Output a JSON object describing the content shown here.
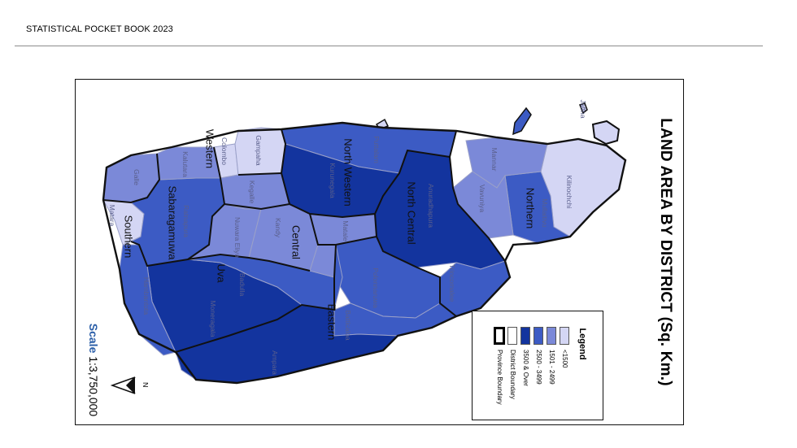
{
  "header": {
    "title": "STATISTICAL POCKET BOOK 2023"
  },
  "map": {
    "title": "LAND AREA BY DISTRICT (Sq. Km.)",
    "scale_word": "Scale",
    "scale_value": "1:3,750,000",
    "north_label": "N",
    "colors": {
      "lt1500": "#d4d6f4",
      "r1501_2499": "#7b89d8",
      "r2500_3499": "#3c5bc4",
      "gt3500": "#13349e",
      "ocean": "#ffffff",
      "district_boundary": "#9aa0c8",
      "province_boundary": "#000000"
    }
  },
  "legend": {
    "title": "Legend",
    "items": [
      {
        "label": "<1500",
        "color": "#d4d6f4"
      },
      {
        "label": "1501 - 2499",
        "color": "#7b89d8"
      },
      {
        "label": "2500 - 3499",
        "color": "#3c5bc4"
      },
      {
        "label": "3500 & Over",
        "color": "#13349e"
      },
      {
        "label": "District Boundary",
        "color": "#ffffff"
      },
      {
        "label": "Province Boundary",
        "color": "#ffffff"
      }
    ]
  },
  "provinces": {
    "northern": "Northern",
    "north_central": "North Central",
    "north_western": "North Western",
    "western": "Western",
    "central": "Central",
    "sabaragamuwa": "Sabaragamuwa",
    "southern": "Southern",
    "uva": "Uva",
    "eastern": "Eastern"
  },
  "districts": {
    "jaffna": "Jaffna",
    "kilinochchi": "Kilinochchi",
    "mannar": "Mannar",
    "mullaitivu": "Mullaitivu",
    "vavuniya": "Vavuniya",
    "puttalam": "Puttalam",
    "kurunegala": "Kurunegala",
    "anuradhapura": "Anuradhapura",
    "polonnaruwa": "Polonnaruwa",
    "gampaha": "Gampaha",
    "colombo": "Colombo",
    "kalutara": "Kalutara",
    "kandy": "Kandy",
    "matale": "Matale",
    "nuwara_eliya": "Nuwara Eliya",
    "kegalle": "Kegalle",
    "ratnapura": "Ratnapura",
    "galle": "Galle",
    "matara": "Matara",
    "hambantota": "Hambantota",
    "badulla": "Badulla",
    "moneragala": "Moneragala",
    "trincomalee": "Trincomalee",
    "batticaloa": "Batticaloa",
    "ampara": "Ampara"
  }
}
